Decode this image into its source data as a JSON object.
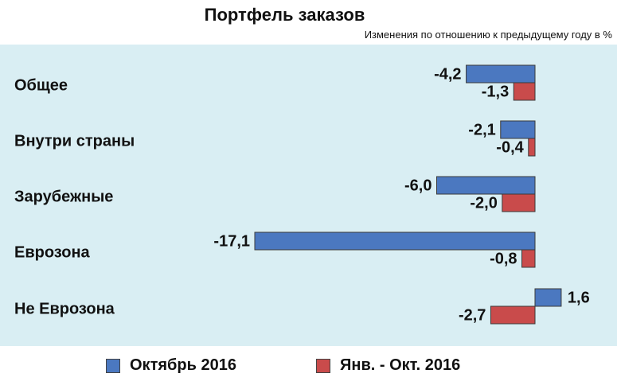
{
  "chart_data": {
    "type": "bar",
    "orientation": "horizontal",
    "title": "Портфель заказов",
    "subtitle": "Изменения по отношению к предыдущему году в %",
    "categories": [
      "Общее",
      "Внутри страны",
      "Зарубежные",
      "Еврозона",
      "Не Еврозона"
    ],
    "series": [
      {
        "name": "Октябрь 2016",
        "color": "#4b78c0",
        "values": [
          -4.2,
          -2.1,
          -6.0,
          -17.1,
          1.6
        ],
        "labels": [
          "-4,2",
          "-2,1",
          "-6,0",
          "-17,1",
          "1,6"
        ]
      },
      {
        "name": "Янв. - Окт. 2016",
        "color": "#c94b4b",
        "values": [
          -1.3,
          -0.4,
          -2.0,
          -0.8,
          -2.7
        ],
        "labels": [
          "-1,3",
          "-0,4",
          "-2,0",
          "-0,8",
          "-2,7"
        ]
      }
    ],
    "xlim": [
      -17.1,
      1.6
    ],
    "grid": false,
    "legend_position": "bottom"
  }
}
